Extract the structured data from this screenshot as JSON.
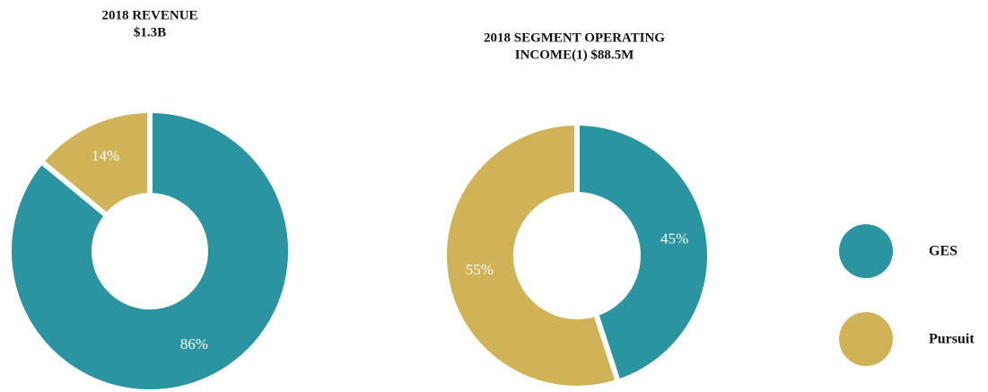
{
  "chart_data": [
    {
      "type": "pie",
      "title": [
        "2018 REVENUE",
        "$1.3B"
      ],
      "categories": [
        "GES",
        "Pursuit"
      ],
      "values": [
        86,
        14
      ],
      "value_labels": [
        "86%",
        "14%"
      ],
      "colors": [
        "#2a94a0",
        "#cfb356"
      ]
    },
    {
      "type": "pie",
      "title": [
        "2018 SEGMENT OPERATING",
        "INCOME(1)  $88.5M"
      ],
      "categories": [
        "GES",
        "Pursuit"
      ],
      "values": [
        45,
        55
      ],
      "value_labels": [
        "45%",
        "55%"
      ],
      "colors": [
        "#2a94a0",
        "#cfb356"
      ]
    }
  ]
}
